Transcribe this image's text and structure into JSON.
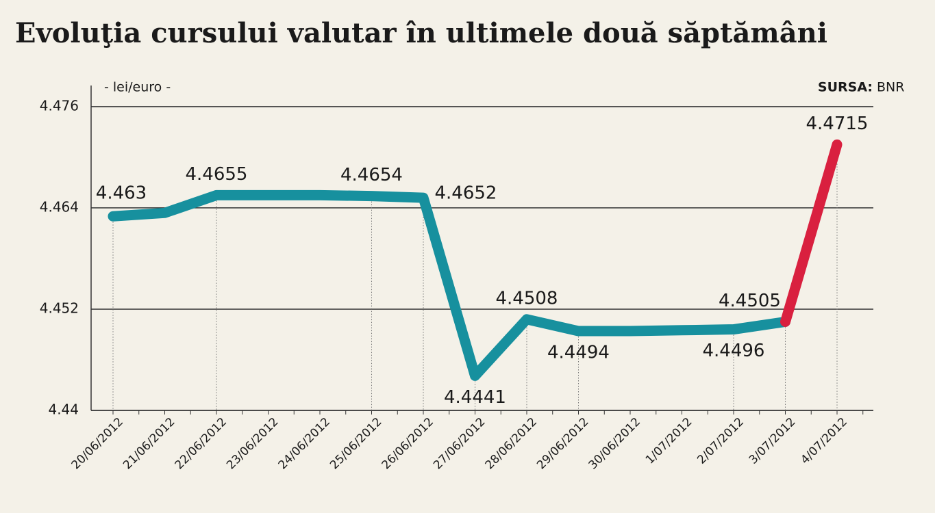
{
  "chart_data": {
    "type": "line",
    "title": "Evoluţia cursului valutar în ultimele două săptămâni",
    "unit_label": "- lei/euro -",
    "source_label": "SURSA:",
    "source": "BNR",
    "categories": [
      "20/06/2012",
      "21/06/2012",
      "22/06/2012",
      "23/06/2012",
      "24/06/2012",
      "25/06/2012",
      "26/06/2012",
      "27/06/2012",
      "28/06/2012",
      "29/06/2012",
      "30/06/2012",
      "1/07/2012",
      "2/07/2012",
      "3/07/2012",
      "4/07/2012"
    ],
    "series": [
      {
        "color": "#17909e",
        "values": [
          4.463,
          4.4634,
          4.4655,
          4.4655,
          4.4655,
          4.4654,
          4.4652,
          4.4441,
          4.4508,
          4.4494,
          4.4494,
          4.4495,
          4.4496,
          4.4505,
          null
        ],
        "value_labels": [
          "4.463",
          null,
          "4.4655",
          null,
          null,
          "4.4654",
          "4.4652",
          "4.4441",
          "4.4508",
          "4.4494",
          null,
          null,
          "4.4496",
          "4.4505",
          null
        ]
      },
      {
        "color": "#d9203f",
        "values": [
          null,
          null,
          null,
          null,
          null,
          null,
          null,
          null,
          null,
          null,
          null,
          null,
          null,
          4.4505,
          4.4715
        ],
        "value_labels": [
          null,
          null,
          null,
          null,
          null,
          null,
          null,
          null,
          null,
          null,
          null,
          null,
          null,
          null,
          "4.4715"
        ]
      }
    ],
    "ylim": [
      4.44,
      4.4785
    ],
    "yticks": [
      4.44,
      4.452,
      4.464,
      4.476
    ],
    "grid": true
  }
}
